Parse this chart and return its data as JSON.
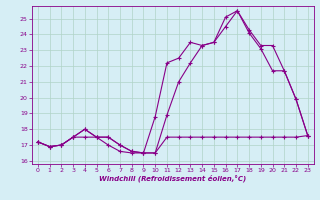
{
  "background_color": "#d6eef5",
  "grid_color": "#b0d4c8",
  "line_color": "#880088",
  "xlim": [
    -0.5,
    23.5
  ],
  "ylim": [
    15.8,
    25.8
  ],
  "yticks": [
    16,
    17,
    18,
    19,
    20,
    21,
    22,
    23,
    24,
    25
  ],
  "xticks": [
    0,
    1,
    2,
    3,
    4,
    5,
    6,
    7,
    8,
    9,
    10,
    11,
    12,
    13,
    14,
    15,
    16,
    17,
    18,
    19,
    20,
    21,
    22,
    23
  ],
  "xlabel": "Windchill (Refroidissement éolien,°C)",
  "series1_x": [
    0,
    1,
    2,
    3,
    4,
    5,
    6,
    7,
    8,
    9,
    10,
    11,
    12,
    13,
    14,
    15,
    16,
    17,
    18,
    19,
    20,
    21,
    22,
    23
  ],
  "series1_y": [
    17.2,
    16.9,
    17.0,
    17.5,
    18.0,
    17.5,
    17.0,
    16.6,
    16.5,
    16.5,
    16.5,
    18.9,
    21.0,
    22.2,
    23.3,
    23.5,
    24.5,
    25.5,
    24.1,
    23.1,
    21.7,
    21.7,
    19.9,
    17.6
  ],
  "series2_x": [
    0,
    1,
    2,
    3,
    4,
    5,
    6,
    7,
    8,
    9,
    10,
    11,
    12,
    13,
    14,
    15,
    16,
    17,
    18,
    19,
    20,
    21,
    22,
    23
  ],
  "series2_y": [
    17.2,
    16.9,
    17.0,
    17.5,
    18.0,
    17.5,
    17.5,
    17.0,
    16.6,
    16.5,
    18.8,
    22.2,
    22.5,
    23.5,
    23.3,
    23.5,
    25.1,
    25.5,
    24.3,
    23.3,
    23.3,
    21.7,
    19.9,
    17.6
  ],
  "series3_x": [
    0,
    1,
    2,
    3,
    4,
    5,
    6,
    7,
    8,
    9,
    10,
    11,
    12,
    13,
    14,
    15,
    16,
    17,
    18,
    19,
    20,
    21,
    22,
    23
  ],
  "series3_y": [
    17.2,
    16.9,
    17.0,
    17.5,
    17.5,
    17.5,
    17.5,
    17.0,
    16.6,
    16.5,
    16.5,
    17.5,
    17.5,
    17.5,
    17.5,
    17.5,
    17.5,
    17.5,
    17.5,
    17.5,
    17.5,
    17.5,
    17.5,
    17.6
  ]
}
